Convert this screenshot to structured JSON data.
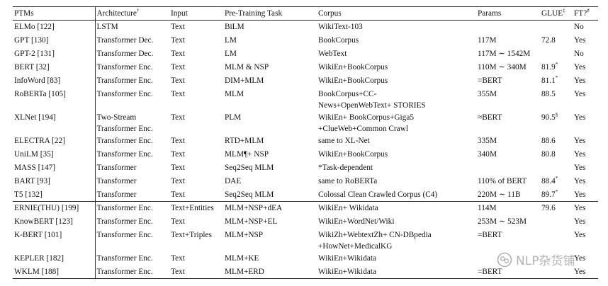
{
  "headers": {
    "ptms": "PTMs",
    "architecture": "Architecture",
    "architecture_mark": "†",
    "input": "Input",
    "task": "Pre-Training Task",
    "corpus": "Corpus",
    "params": "Params",
    "glue": "GLUE",
    "glue_mark": "‡",
    "ft": "FT?",
    "ft_mark": "♯"
  },
  "rows": [
    {
      "ptm": "ELMo [122]",
      "arch": "LSTM",
      "input": "Text",
      "task": "BiLM",
      "corpus": "WikiText-103",
      "params": "",
      "glue": "",
      "glue_mark": "",
      "ft": "No"
    },
    {
      "ptm": "GPT [130]",
      "arch": "Transformer Dec.",
      "input": "Text",
      "task": "LM",
      "corpus": "BookCorpus",
      "params": "117M",
      "glue": "72.8",
      "glue_mark": "",
      "ft": "Yes"
    },
    {
      "ptm": "GPT-2 [131]",
      "arch": "Transformer Dec.",
      "input": "Text",
      "task": "LM",
      "corpus": "WebText",
      "params": "117M ∼ 1542M",
      "glue": "",
      "glue_mark": "",
      "ft": "No"
    },
    {
      "ptm": "BERT [32]",
      "arch": "Transformer Enc.",
      "input": "Text",
      "task": "MLM & NSP",
      "corpus": "WikiEn+BookCorpus",
      "params": "110M ∼ 340M",
      "glue": "81.9",
      "glue_mark": "*",
      "ft": "Yes"
    },
    {
      "ptm": "InfoWord [83]",
      "arch": "Transformer Enc.",
      "input": "Text",
      "task": "DIM+MLM",
      "corpus": "WikiEn+BookCorpus",
      "params": "=BERT",
      "glue": "81.1",
      "glue_mark": "*",
      "ft": "Yes"
    },
    {
      "ptm": "RoBERTa [105]",
      "arch": "Transformer Enc.",
      "input": "Text",
      "task": "MLM",
      "corpus": "BookCorpus+CC-",
      "corpus2": "News+OpenWebText+ STORIES",
      "params": "355M",
      "glue": "88.5",
      "glue_mark": "",
      "ft": "Yes"
    },
    {
      "ptm": "XLNet [194]",
      "arch": "Two-Stream",
      "arch2": "Transformer Enc.",
      "input": "Text",
      "task": "PLM",
      "corpus": "WikiEn+ BookCorpus+Giga5",
      "corpus2": "+ClueWeb+Common Crawl",
      "params": "≈BERT",
      "glue": "90.5",
      "glue_mark": "§",
      "ft": "Yes"
    },
    {
      "ptm": "ELECTRA [22]",
      "arch": "Transformer Enc.",
      "input": "Text",
      "task": "RTD+MLM",
      "corpus": "same to XL-Net",
      "params": "335M",
      "glue": "88.6",
      "glue_mark": "",
      "ft": "Yes"
    },
    {
      "ptm": "UniLM [35]",
      "arch": "Transformer Enc.",
      "input": "Text",
      "task": "MLM¶+ NSP",
      "corpus": "WikiEn+BookCorpus",
      "params": "340M",
      "glue": "80.8",
      "glue_mark": "",
      "ft": "Yes"
    },
    {
      "ptm": "MASS [147]",
      "arch": "Transformer",
      "input": "Text",
      "task": "Seq2Seq MLM",
      "corpus": "*Task-dependent",
      "params": "",
      "glue": "",
      "glue_mark": "",
      "ft": "Yes"
    },
    {
      "ptm": "BART [93]",
      "arch": "Transformer",
      "input": "Text",
      "task": "DAE",
      "corpus": "same to RoBERTa",
      "params": "110% of BERT",
      "glue": "88.4",
      "glue_mark": "*",
      "ft": "Yes"
    },
    {
      "ptm": "T5 [132]",
      "arch": "Transformer",
      "input": "Text",
      "task": "Seq2Seq MLM",
      "corpus": "Colossal Clean Crawled Corpus (C4)",
      "params": "220M ∼ 11B",
      "glue": "89.7",
      "glue_mark": "*",
      "ft": "Yes"
    },
    {
      "ptm": "ERNIE(THU) [199]",
      "arch": "Transformer Enc.",
      "input": "Text+Entities",
      "task": "MLM+NSP+dEA",
      "corpus": "WikiEn+ Wikidata",
      "params": "114M",
      "glue": "79.6",
      "glue_mark": "",
      "ft": "Yes"
    },
    {
      "ptm": "KnowBERT [123]",
      "arch": "Transformer Enc.",
      "input": "Text",
      "task": "MLM+NSP+EL",
      "corpus": "WikiEn+WordNet/Wiki",
      "params": "253M ∼ 523M",
      "glue": "",
      "glue_mark": "",
      "ft": "Yes"
    },
    {
      "ptm": "K-BERT [101]",
      "arch": "Transformer Enc.",
      "input": "Text+Triples",
      "task": "MLM+NSP",
      "corpus": "WikiZh+WebtextZh+ CN-DBpedia",
      "corpus2": "+HowNet+MedicalKG",
      "params": "=BERT",
      "glue": "",
      "glue_mark": "",
      "ft": "Yes"
    },
    {
      "ptm": "KEPLER [182]",
      "arch": "Transformer Enc.",
      "input": "Text",
      "task": "MLM+KE",
      "corpus": "WikiEn+Wikidata",
      "params": "",
      "glue": "",
      "glue_mark": "",
      "ft": "Yes"
    },
    {
      "ptm": "WKLM [188]",
      "arch": "Transformer Enc.",
      "input": "Text",
      "task": "MLM+ERD",
      "corpus": "WikiEn+Wikidata",
      "params": "=BERT",
      "glue": "",
      "glue_mark": "",
      "ft": "Yes"
    }
  ],
  "watermark": {
    "icon": "wechat-official-account-icon",
    "text": "NLP杂货铺"
  }
}
